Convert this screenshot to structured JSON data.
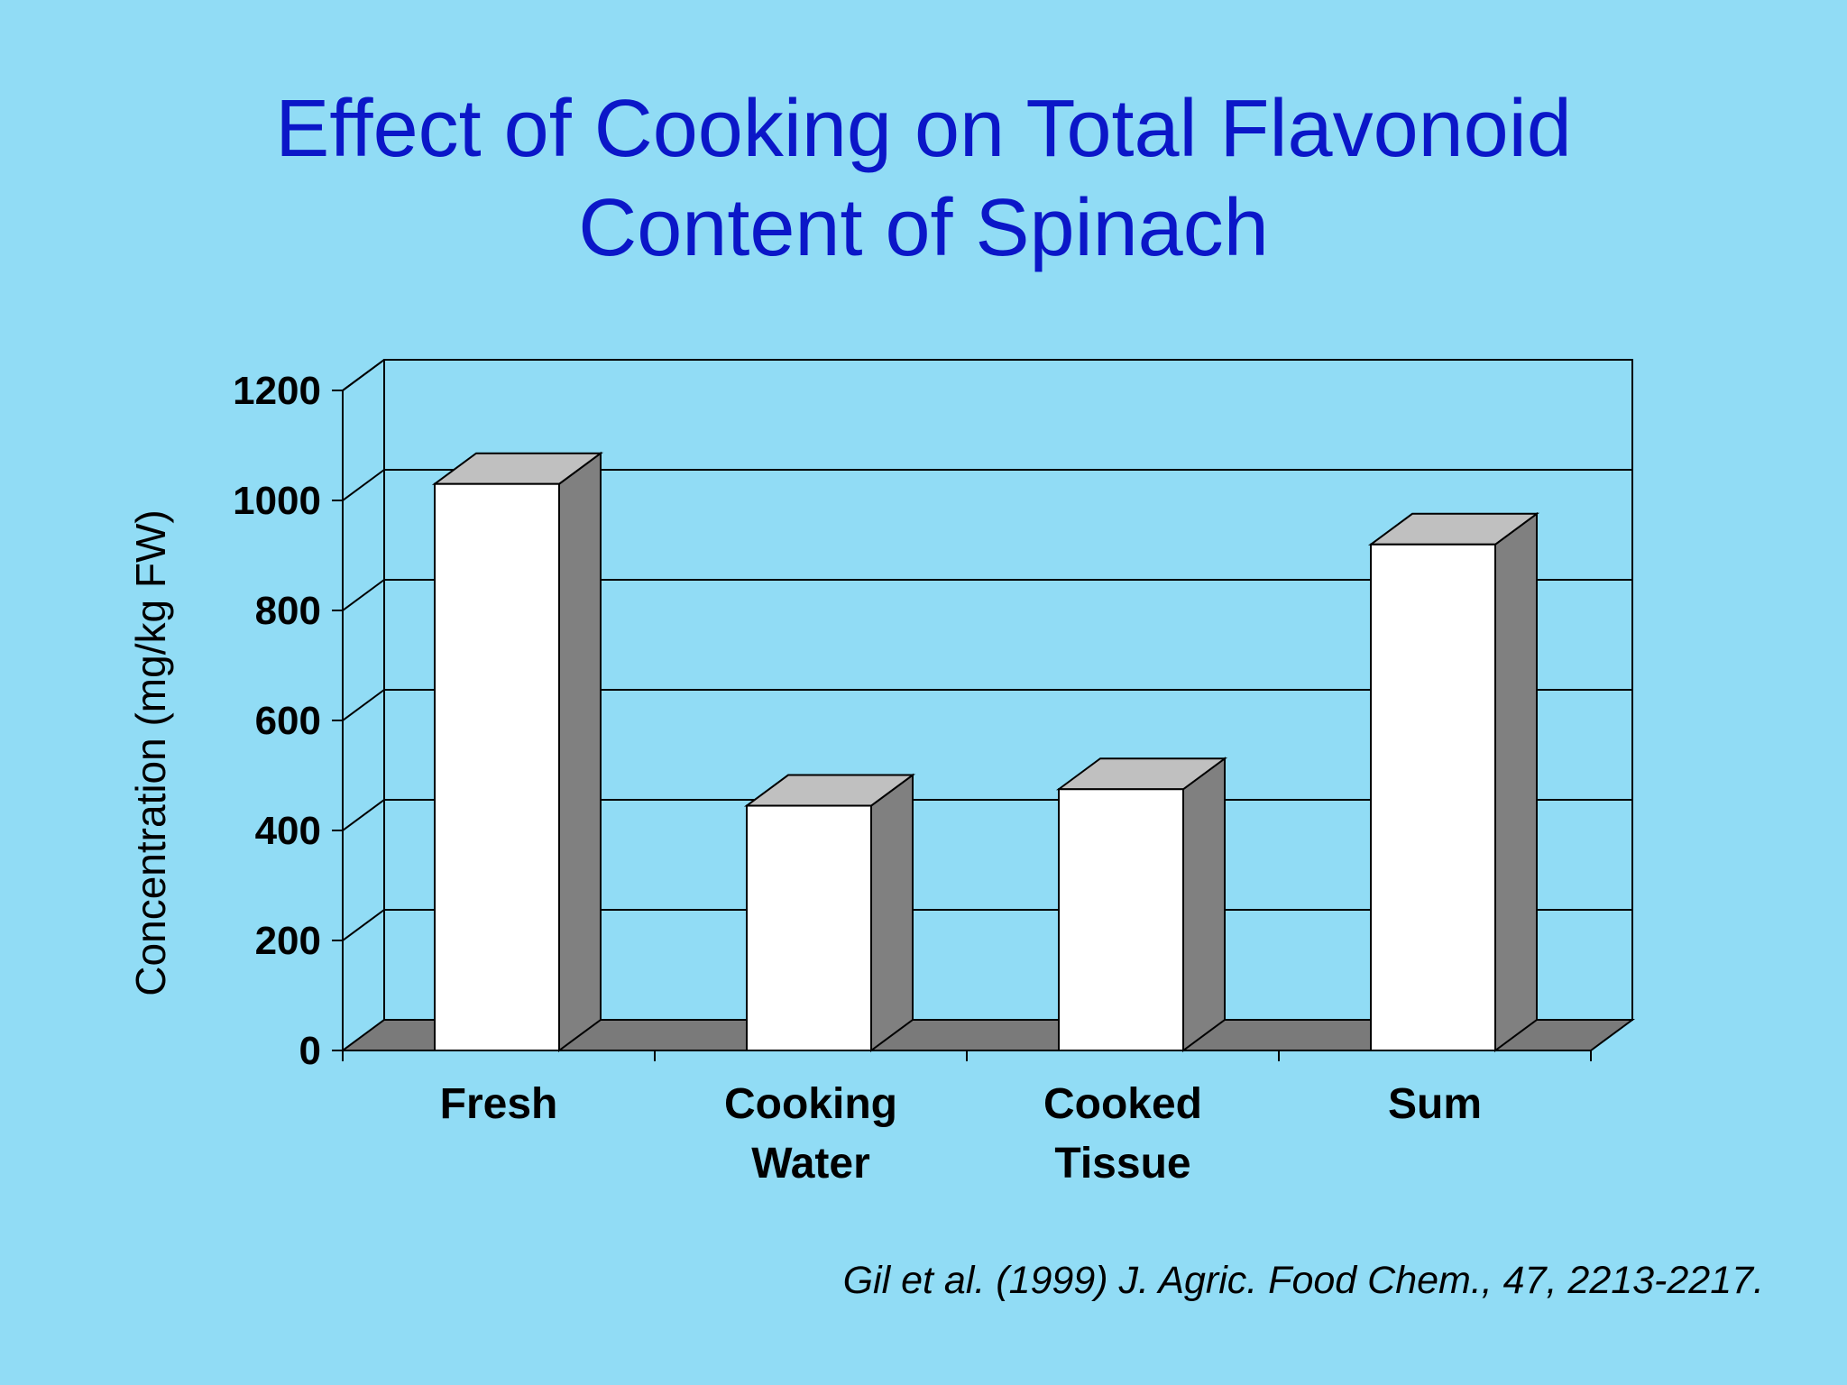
{
  "title_lines": [
    "Effect of Cooking on Total Flavonoid",
    "Content of Spinach"
  ],
  "citation": "Gil et al. (1999) J. Agric. Food Chem., 47, 2213-2217.",
  "colors": {
    "background": "#91dcf5",
    "title": "#0b17c8",
    "bar_front": "#ffffff",
    "bar_top": "#c0c0c0",
    "bar_side": "#808080",
    "floor": "#7a7a7a"
  },
  "chart_data": {
    "type": "bar",
    "style": "3d-column",
    "title": "Effect of Cooking on Total Flavonoid Content of Spinach",
    "categories": [
      {
        "lines": [
          "Fresh"
        ]
      },
      {
        "lines": [
          "Cooking",
          "Water"
        ]
      },
      {
        "lines": [
          "Cooked",
          "Tissue"
        ]
      },
      {
        "lines": [
          "Sum"
        ]
      }
    ],
    "values": [
      1030,
      445,
      475,
      920
    ],
    "ylabel": "Concentration (mg/kg FW)",
    "ylim": [
      0,
      1200
    ],
    "yticks": [
      0,
      200,
      400,
      600,
      800,
      1000,
      1200
    ],
    "grid": true,
    "legend": "none"
  }
}
